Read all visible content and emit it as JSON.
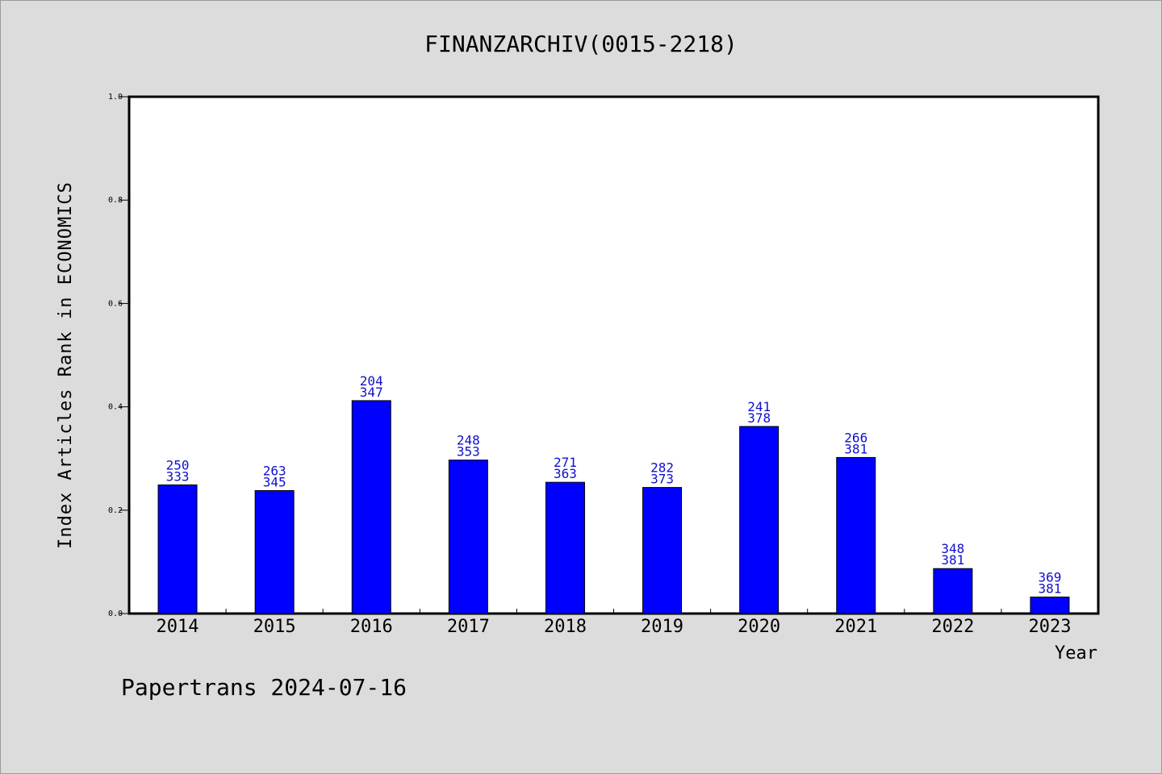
{
  "chart_data": {
    "type": "bar",
    "title": "FINANZARCHIV(0015-2218)",
    "xlabel": "Year",
    "ylabel": "Index Articles Rank in ECONOMICS",
    "ylim": [
      0,
      1.0
    ],
    "yticks": [
      "0.0",
      "0.2",
      "0.4",
      "0.6",
      "0.8",
      "1.0"
    ],
    "grid": false,
    "bar_color": "#0000ff",
    "label_color": "#1010cc",
    "categories": [
      "2014",
      "2015",
      "2016",
      "2017",
      "2018",
      "2019",
      "2020",
      "2021",
      "2022",
      "2023"
    ],
    "values": [
      0.249,
      0.238,
      0.412,
      0.297,
      0.254,
      0.244,
      0.362,
      0.302,
      0.087,
      0.032
    ],
    "rank_labels": [
      "250",
      "263",
      "204",
      "248",
      "271",
      "282",
      "241",
      "266",
      "348",
      "369"
    ],
    "total_labels": [
      "333",
      "345",
      "347",
      "353",
      "363",
      "373",
      "378",
      "381",
      "381",
      "381"
    ]
  },
  "footer": "Papertrans 2024-07-16"
}
